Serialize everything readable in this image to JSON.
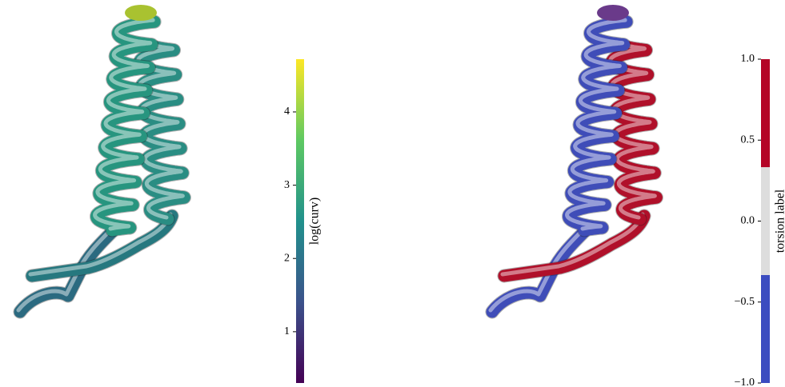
{
  "chart_data": [
    {
      "type": "colorbar",
      "label": "log(curv)",
      "colormap": "viridis",
      "clim": [
        0.3,
        4.72
      ],
      "ticks": [
        1,
        2,
        3,
        4
      ]
    },
    {
      "type": "discrete-colorbar",
      "label": "torsion label",
      "clim": [
        -1,
        1
      ],
      "levels": [
        -1,
        -0.333,
        0.333,
        1
      ],
      "colors": [
        "#3b4cc0",
        "#dddddd",
        "#b40426"
      ],
      "ticks": [
        {
          "value": -1,
          "label": "−1.0"
        },
        {
          "value": -0.5,
          "label": "−0.5"
        },
        {
          "value": 0,
          "label": "0.0"
        },
        {
          "value": 0.5,
          "label": "0.5"
        },
        {
          "value": 1,
          "label": "1.0"
        }
      ]
    }
  ]
}
